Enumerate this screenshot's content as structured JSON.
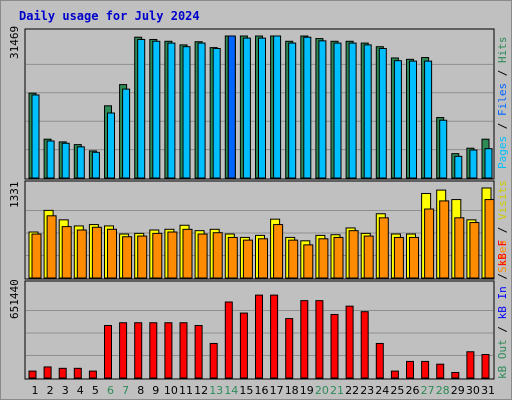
{
  "chart_data": [
    {
      "type": "bar",
      "title": "Daily usage for July 2024",
      "ylabel": "Pages / Files / Hits",
      "ymax_label": "31469",
      "ylim": [
        0,
        31469
      ],
      "categories": [
        "1",
        "2",
        "3",
        "4",
        "5",
        "6",
        "7",
        "8",
        "9",
        "10",
        "11",
        "12",
        "13",
        "14",
        "15",
        "16",
        "17",
        "18",
        "19",
        "20",
        "21",
        "22",
        "23",
        "24",
        "25",
        "26",
        "27",
        "28",
        "29",
        "30",
        "31"
      ],
      "weekend_days": [
        "6",
        "7",
        "13",
        "14",
        "20",
        "21",
        "27",
        "28"
      ],
      "series": [
        {
          "name": "Hits",
          "color": "#2e8b57",
          "values": [
            18800,
            8600,
            8000,
            7400,
            6000,
            16000,
            20700,
            31200,
            30700,
            30300,
            29500,
            30200,
            28900,
            31700,
            31500,
            31500,
            32200,
            30300,
            31600,
            30900,
            30300,
            30300,
            29900,
            29100,
            26600,
            26300,
            26700,
            13400,
            5400,
            6600,
            8600
          ]
        },
        {
          "name": "Files",
          "color": "#00bfff",
          "values": [
            18400,
            8200,
            7700,
            6900,
            5700,
            14400,
            19700,
            30700,
            30300,
            29900,
            29100,
            29900,
            28700,
            31200,
            31000,
            31000,
            31800,
            29900,
            31200,
            30400,
            29900,
            29900,
            29500,
            28700,
            26000,
            25900,
            25900,
            12800,
            4800,
            6200,
            6500
          ]
        },
        {
          "name": "Pages",
          "color": "#0066ff",
          "values": [
            0,
            0,
            0,
            0,
            0,
            0,
            0,
            0,
            0,
            0,
            0,
            0,
            0,
            31700,
            0,
            0,
            0,
            0,
            0,
            0,
            0,
            0,
            0,
            0,
            0,
            0,
            0,
            0,
            0,
            0,
            0
          ]
        }
      ]
    },
    {
      "type": "bar",
      "ylabel": "Visits / Sites",
      "ymax_label": "1331",
      "ylim": [
        0,
        1331
      ],
      "series": [
        {
          "name": "Visits",
          "color": "#ffff00",
          "values": [
            680,
            1000,
            860,
            770,
            790,
            770,
            650,
            660,
            710,
            720,
            780,
            700,
            720,
            650,
            600,
            630,
            870,
            600,
            550,
            630,
            640,
            740,
            660,
            950,
            650,
            650,
            1250,
            1300,
            1160,
            860,
            1380
          ]
        },
        {
          "name": "Sites",
          "color": "#ff8c00",
          "values": [
            650,
            920,
            760,
            710,
            750,
            720,
            610,
            620,
            660,
            680,
            720,
            650,
            670,
            600,
            560,
            580,
            790,
            560,
            490,
            580,
            600,
            700,
            620,
            890,
            600,
            600,
            1020,
            1140,
            890,
            820,
            1160
          ]
        }
      ]
    },
    {
      "type": "bar",
      "ylabel": "kB F / kB In / kB Out",
      "ymax_label": "651440",
      "ylim": [
        0,
        651440
      ],
      "series": [
        {
          "name": "kB F",
          "color": "#ff0000",
          "values": [
            50000,
            80000,
            70000,
            70000,
            50000,
            380000,
            400000,
            400000,
            400000,
            400000,
            400000,
            380000,
            250000,
            550000,
            470000,
            600000,
            600000,
            430000,
            560000,
            560000,
            460000,
            520000,
            480000,
            250000,
            50000,
            120000,
            120000,
            100000,
            40000,
            190000,
            170000
          ]
        },
        {
          "name": "kB In",
          "color": "#0000ff",
          "values": []
        },
        {
          "name": "kB Out",
          "color": "#2e8b57",
          "values": []
        }
      ]
    }
  ]
}
